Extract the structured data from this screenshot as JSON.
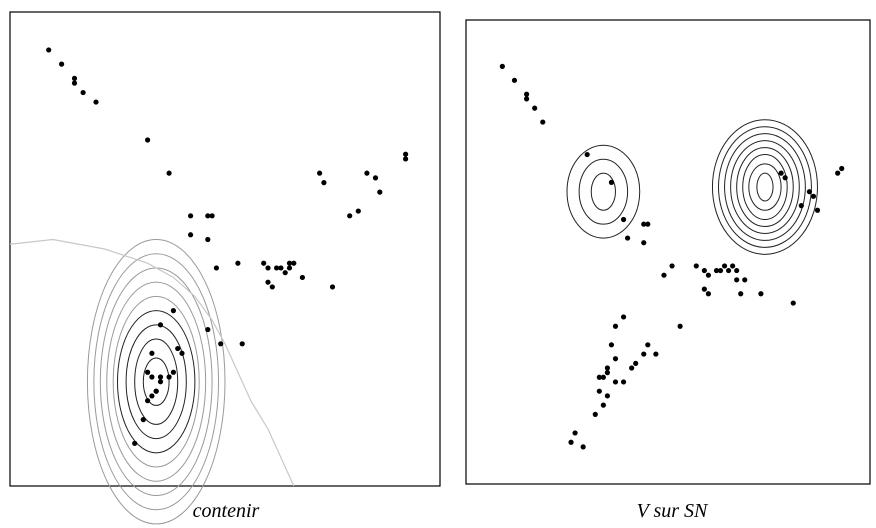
{
  "colors": {
    "dots": "#000000",
    "frame": "#000000",
    "contour_dark": "#222222",
    "contour_light": "#9a9a9a",
    "boundary": "#c8c8c8"
  },
  "chart_data": [
    {
      "type": "scatter",
      "title": "contenir",
      "xlim": [
        0,
        100
      ],
      "ylim": [
        0,
        100
      ],
      "grid": false,
      "points": [
        [
          9,
          92
        ],
        [
          12,
          89
        ],
        [
          15,
          86
        ],
        [
          15,
          85
        ],
        [
          17,
          83
        ],
        [
          20,
          81
        ],
        [
          32,
          73
        ],
        [
          37,
          66
        ],
        [
          42,
          57
        ],
        [
          42,
          53
        ],
        [
          46,
          57
        ],
        [
          47,
          57
        ],
        [
          46,
          52
        ],
        [
          48,
          46
        ],
        [
          53,
          47
        ],
        [
          59,
          47
        ],
        [
          60,
          46
        ],
        [
          62,
          46
        ],
        [
          63,
          46
        ],
        [
          64,
          45
        ],
        [
          65,
          47
        ],
        [
          65,
          46
        ],
        [
          66,
          47
        ],
        [
          68,
          44
        ],
        [
          60,
          43
        ],
        [
          61,
          42
        ],
        [
          75,
          42
        ],
        [
          72,
          66
        ],
        [
          73,
          64
        ],
        [
          83,
          66
        ],
        [
          85,
          65
        ],
        [
          86,
          62
        ],
        [
          79,
          57
        ],
        [
          81,
          58
        ],
        [
          92,
          70
        ],
        [
          92,
          69
        ],
        [
          38,
          37
        ],
        [
          35,
          34
        ],
        [
          33,
          28
        ],
        [
          39,
          29
        ],
        [
          40,
          28
        ],
        [
          32,
          24
        ],
        [
          33,
          23
        ],
        [
          35,
          23
        ],
        [
          35,
          22
        ],
        [
          37,
          23
        ],
        [
          38,
          24
        ],
        [
          34,
          20
        ],
        [
          34,
          20
        ],
        [
          33,
          19
        ],
        [
          32,
          18
        ],
        [
          31,
          14
        ],
        [
          29,
          9
        ],
        [
          49,
          30
        ],
        [
          54,
          30
        ],
        [
          46,
          33
        ]
      ],
      "contours": {
        "center": [
          34,
          22
        ],
        "levels": [
          {
            "rx": 3,
            "ry": 5,
            "tone": "dark"
          },
          {
            "rx": 5,
            "ry": 9,
            "tone": "dark"
          },
          {
            "rx": 7,
            "ry": 12,
            "tone": "dark"
          },
          {
            "rx": 9,
            "ry": 15,
            "tone": "dark"
          },
          {
            "rx": 10,
            "ry": 18,
            "tone": "light"
          },
          {
            "rx": 11.5,
            "ry": 21,
            "tone": "light"
          },
          {
            "rx": 13,
            "ry": 24,
            "tone": "light"
          },
          {
            "rx": 14.5,
            "ry": 27,
            "tone": "light"
          },
          {
            "rx": 16,
            "ry": 30,
            "tone": "light"
          }
        ]
      },
      "boundary": [
        [
          0,
          51
        ],
        [
          10,
          52
        ],
        [
          22,
          50
        ],
        [
          32,
          47
        ],
        [
          38,
          44
        ],
        [
          43,
          40
        ],
        [
          47,
          35
        ],
        [
          50,
          30
        ],
        [
          53,
          24
        ],
        [
          56,
          18
        ],
        [
          60,
          12
        ],
        [
          63,
          6
        ],
        [
          66,
          0
        ]
      ]
    },
    {
      "type": "scatter",
      "title": "V sur SN",
      "xlim": [
        0,
        100
      ],
      "ylim": [
        0,
        100
      ],
      "grid": false,
      "points": [
        [
          9,
          90
        ],
        [
          12,
          87
        ],
        [
          15,
          84
        ],
        [
          15,
          83
        ],
        [
          17,
          81
        ],
        [
          19,
          78
        ],
        [
          30,
          71
        ],
        [
          36,
          65
        ],
        [
          39,
          57
        ],
        [
          44,
          56
        ],
        [
          45,
          56
        ],
        [
          40,
          53
        ],
        [
          44,
          52
        ],
        [
          49,
          45
        ],
        [
          51,
          47
        ],
        [
          57,
          47
        ],
        [
          59,
          46
        ],
        [
          60,
          45
        ],
        [
          62,
          46
        ],
        [
          63,
          46
        ],
        [
          64,
          47
        ],
        [
          65,
          46
        ],
        [
          66,
          47
        ],
        [
          67,
          46
        ],
        [
          67,
          44
        ],
        [
          59,
          42
        ],
        [
          60,
          41
        ],
        [
          69,
          44
        ],
        [
          68,
          41
        ],
        [
          73,
          41
        ],
        [
          81,
          39
        ],
        [
          78,
          67
        ],
        [
          79,
          66
        ],
        [
          85,
          63
        ],
        [
          86,
          62
        ],
        [
          83,
          60
        ],
        [
          87,
          59
        ],
        [
          92,
          67
        ],
        [
          93,
          68
        ],
        [
          39,
          36
        ],
        [
          37,
          34
        ],
        [
          36,
          30
        ],
        [
          45,
          30
        ],
        [
          53,
          34
        ],
        [
          47,
          28
        ],
        [
          44,
          28
        ],
        [
          41,
          25
        ],
        [
          42,
          26
        ],
        [
          37,
          27
        ],
        [
          35,
          25
        ],
        [
          35,
          24
        ],
        [
          33,
          23
        ],
        [
          34,
          23
        ],
        [
          39,
          22
        ],
        [
          37,
          22
        ],
        [
          33,
          20
        ],
        [
          35,
          19
        ],
        [
          34,
          17
        ],
        [
          32,
          15
        ],
        [
          29,
          8
        ],
        [
          27,
          11
        ],
        [
          26,
          9
        ]
      ],
      "contour_groups": [
        {
          "center": [
            34,
            63
          ],
          "levels": [
            {
              "rx": 3,
              "ry": 4,
              "tone": "dark"
            },
            {
              "rx": 6,
              "ry": 7,
              "tone": "dark"
            },
            {
              "rx": 9,
              "ry": 10,
              "tone": "dark"
            }
          ]
        },
        {
          "center": [
            74,
            64
          ],
          "levels": [
            {
              "rx": 2,
              "ry": 3,
              "tone": "dark"
            },
            {
              "rx": 4,
              "ry": 5,
              "tone": "dark"
            },
            {
              "rx": 5.5,
              "ry": 7,
              "tone": "dark"
            },
            {
              "rx": 7,
              "ry": 8.5,
              "tone": "dark"
            },
            {
              "rx": 8.5,
              "ry": 10,
              "tone": "dark"
            },
            {
              "rx": 10,
              "ry": 11.5,
              "tone": "dark"
            },
            {
              "rx": 11.5,
              "ry": 13,
              "tone": "dark"
            },
            {
              "rx": 13,
              "ry": 14.5,
              "tone": "dark"
            }
          ]
        }
      ]
    }
  ]
}
